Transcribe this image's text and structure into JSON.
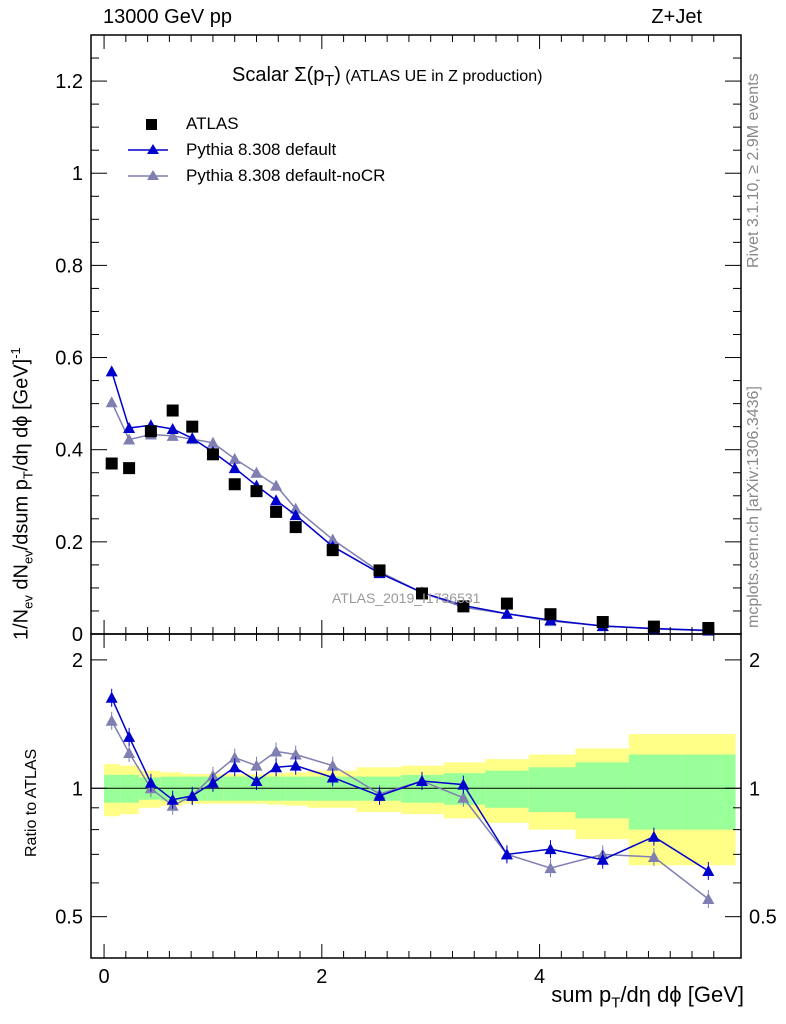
{
  "header": {
    "left_text": "13000 GeV pp",
    "right_text": "Z+Jet"
  },
  "plot_title": {
    "main": "Scalar Σ(p",
    "sub": "T",
    "close": ")",
    "rest": " (ATLAS UE in Z production)"
  },
  "side_labels": {
    "rivet": "Rivet 3.1.10, ≥ 2.9M events",
    "mcplots": "mcplots.cern.ch [arXiv:1306.3436]"
  },
  "watermark": "ATLAS_2019_I1736531",
  "axes": {
    "x_title": "sum p",
    "x_title_sub": "T",
    "x_title_rest": "/dη dϕ [GeV]",
    "y_title": "1/N",
    "ratio_title": "Ratio to ATLAS"
  },
  "legend": [
    {
      "label": "ATLAS",
      "color": "#000000",
      "marker": "square"
    },
    {
      "label": "Pythia 8.308 default",
      "color": "#0000cc",
      "marker": "triangle"
    },
    {
      "label": "Pythia 8.308 default-noCR",
      "color": "#7f7fb2",
      "marker": "triangle"
    }
  ],
  "chart_data": {
    "type": "scatter",
    "x_range": [
      -0.12,
      5.85
    ],
    "main_ylim": [
      0,
      1.3
    ],
    "ratio_ylim": [
      0.4,
      2.3
    ],
    "x_ticks": [
      0,
      2,
      4
    ],
    "main_y_ticks": [
      0,
      0.2,
      0.4,
      0.6,
      0.8,
      1,
      1.2
    ],
    "main_y_tick_labels": [
      "0",
      "0.2",
      "0.4",
      "0.6",
      "0.8",
      "1",
      "1.2"
    ],
    "ratio_y_ticks": [
      0.5,
      1,
      2
    ],
    "ratio_y_tick_labels": [
      "0.5",
      "1",
      "2"
    ],
    "x": [
      0.07,
      0.23,
      0.43,
      0.63,
      0.81,
      1.0,
      1.2,
      1.4,
      1.58,
      1.76,
      2.1,
      2.53,
      2.92,
      3.3,
      3.7,
      4.1,
      4.58,
      5.05,
      5.55
    ],
    "bin_edges": [
      0,
      0.15,
      0.32,
      0.52,
      0.72,
      0.9,
      1.1,
      1.3,
      1.5,
      1.67,
      1.87,
      2.32,
      2.73,
      3.12,
      3.5,
      3.9,
      4.33,
      4.82,
      5.3,
      5.8
    ],
    "series": [
      {
        "name": "ATLAS",
        "values": [
          0.37,
          0.36,
          0.44,
          0.485,
          0.45,
          0.39,
          0.325,
          0.31,
          0.265,
          0.232,
          0.182,
          0.138,
          0.088,
          0.06,
          0.066,
          0.043,
          0.026,
          0.016,
          0.013
        ]
      },
      {
        "name": "Pythia 8.308 default",
        "values": [
          0.57,
          0.447,
          0.453,
          0.445,
          0.425,
          0.395,
          0.36,
          0.322,
          0.29,
          0.258,
          0.19,
          0.132,
          0.09,
          0.062,
          0.044,
          0.03,
          0.017,
          0.012,
          0.008
        ]
      },
      {
        "name": "Pythia 8.308 default-noCR",
        "values": [
          0.503,
          0.422,
          0.433,
          0.43,
          0.423,
          0.415,
          0.38,
          0.35,
          0.322,
          0.272,
          0.205,
          0.135,
          0.09,
          0.058,
          0.044,
          0.028,
          0.018,
          0.011,
          0.007
        ]
      }
    ],
    "ratio_series": [
      {
        "name": "Pythia 8.308 default",
        "values": [
          1.63,
          1.32,
          1.03,
          0.94,
          0.96,
          1.03,
          1.12,
          1.04,
          1.12,
          1.13,
          1.06,
          0.96,
          1.04,
          1.02,
          0.7,
          0.72,
          0.68,
          0.77,
          0.64
        ]
      },
      {
        "name": "Pythia 8.308 default-noCR",
        "values": [
          1.44,
          1.21,
          1.0,
          0.91,
          0.96,
          1.07,
          1.18,
          1.13,
          1.22,
          1.2,
          1.13,
          0.97,
          1.04,
          0.95,
          0.7,
          0.65,
          0.7,
          0.69,
          0.55
        ]
      }
    ],
    "ratio_band_inner": [
      0.075,
      0.075,
      0.06,
      0.065,
      0.065,
      0.065,
      0.065,
      0.065,
      0.065,
      0.065,
      0.065,
      0.065,
      0.075,
      0.085,
      0.1,
      0.12,
      0.15,
      0.2,
      0.2
    ],
    "ratio_band_outer": [
      0.14,
      0.13,
      0.1,
      0.09,
      0.08,
      0.08,
      0.08,
      0.08,
      0.085,
      0.09,
      0.1,
      0.12,
      0.13,
      0.15,
      0.17,
      0.2,
      0.24,
      0.34,
      0.34
    ],
    "colors": {
      "band_inner": "#99ff99",
      "band_outer": "#ffff88"
    }
  }
}
